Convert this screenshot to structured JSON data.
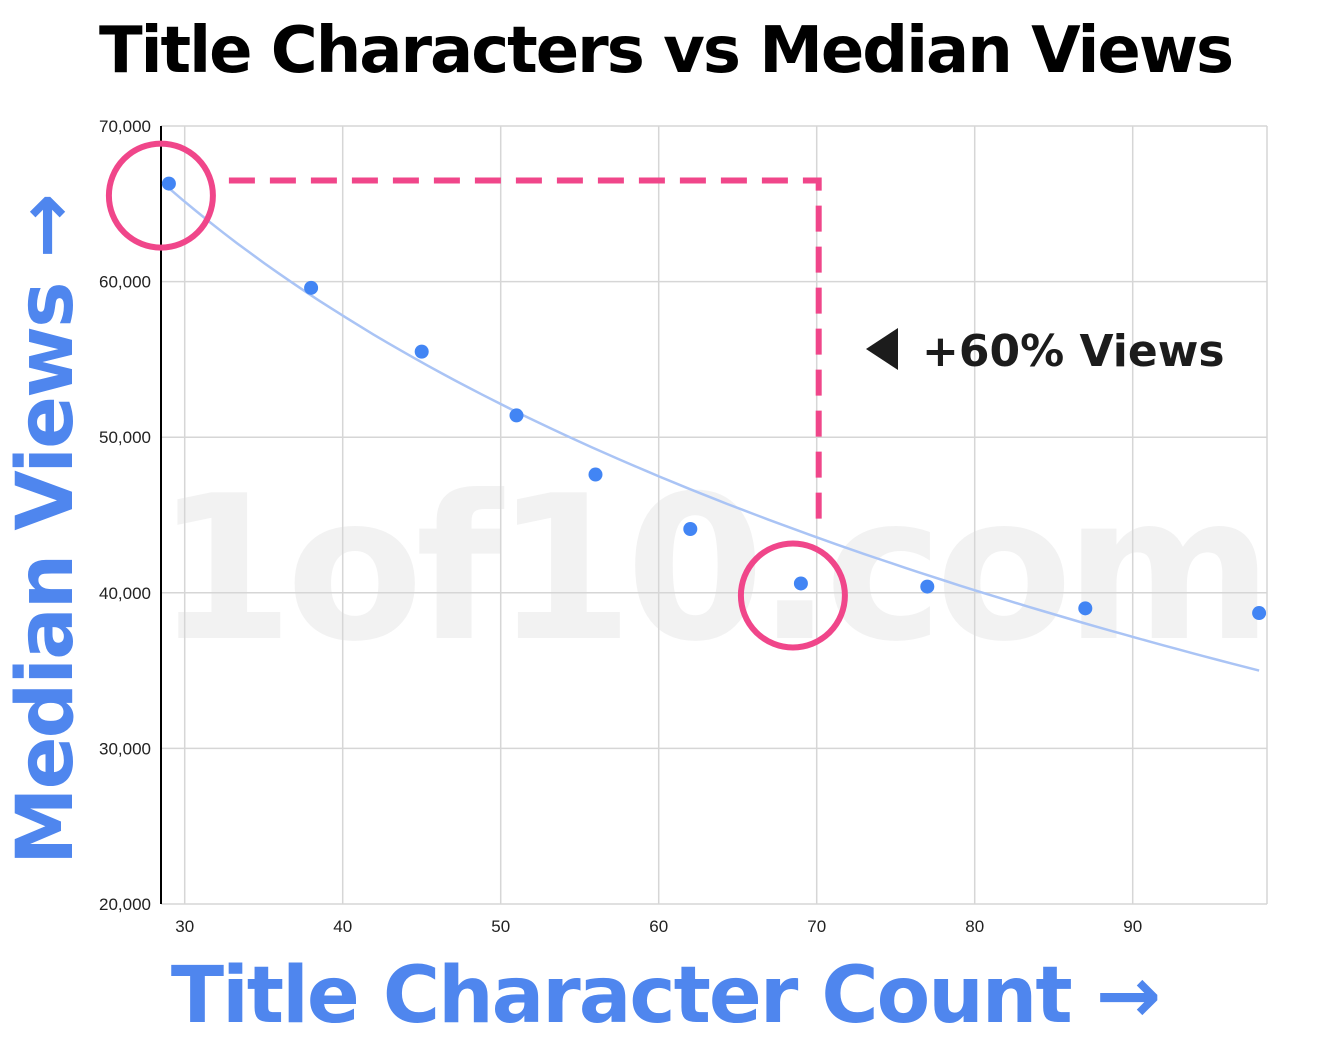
{
  "colors": {
    "point": "#4285f4",
    "trendline": "#aac4f5",
    "highlight": "#f0468a",
    "axis_title": "#4f86ee",
    "grid": "#d6d6d6"
  },
  "watermark": "1of10.com",
  "annotation": {
    "text": "+60% Views",
    "icon": "left-triangle-icon",
    "from_x": 29,
    "to_x": 70,
    "level_y": 66500
  },
  "chart_data": {
    "type": "scatter",
    "title": "Title Characters vs Median Views",
    "xlabel": "Title Character Count →",
    "ylabel": "Median Views →",
    "xlim": [
      28.5,
      98.5
    ],
    "ylim": [
      20000,
      70000
    ],
    "x_ticks": [
      30,
      40,
      50,
      60,
      70,
      80,
      90
    ],
    "x_tick_labels": [
      "30",
      "40",
      "50",
      "60",
      "70",
      "80",
      "90"
    ],
    "y_ticks": [
      20000,
      30000,
      40000,
      50000,
      60000,
      70000
    ],
    "y_tick_labels": [
      "20,000",
      "30,000",
      "40,000",
      "50,000",
      "60,000",
      "70,000"
    ],
    "grid": true,
    "legend": "none",
    "series": [
      {
        "points": [
          {
            "x": 29,
            "y": 66300
          },
          {
            "x": 38,
            "y": 59600
          },
          {
            "x": 45,
            "y": 55500
          },
          {
            "x": 51,
            "y": 51400
          },
          {
            "x": 56,
            "y": 47600
          },
          {
            "x": 62,
            "y": 44100
          },
          {
            "x": 69,
            "y": 40600
          },
          {
            "x": 77,
            "y": 40400
          },
          {
            "x": 87,
            "y": 39000
          },
          {
            "x": 98,
            "y": 38700
          }
        ]
      }
    ],
    "trendline": {
      "type": "logarithmic",
      "x_range": [
        29,
        98
      ],
      "y_at_start": 66000,
      "y_at_end": 35000
    },
    "highlighted_points": [
      29,
      69
    ]
  }
}
